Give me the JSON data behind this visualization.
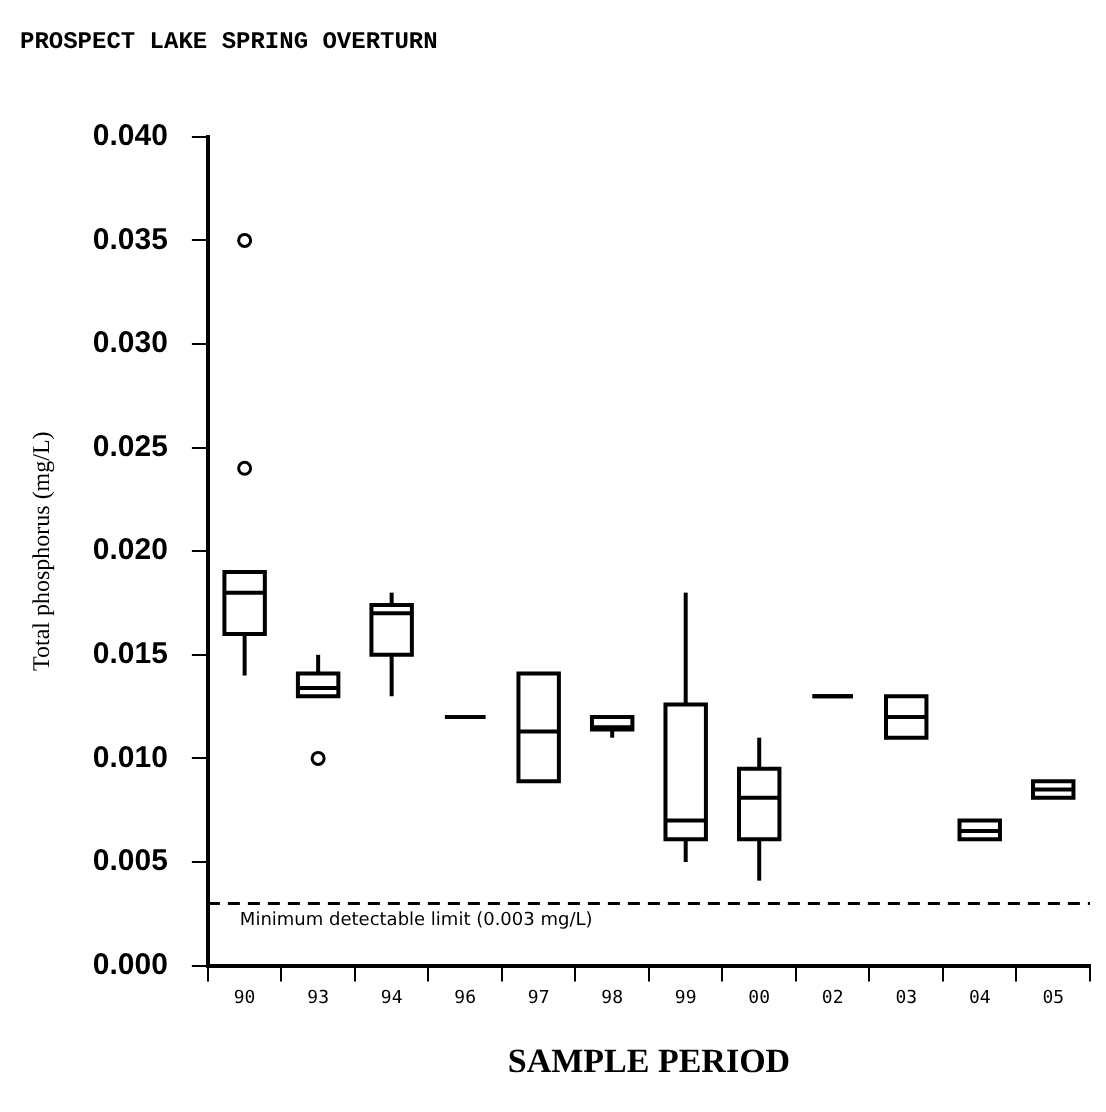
{
  "chart_data": {
    "type": "box",
    "title": "PROSPECT LAKE SPRING OVERTURN",
    "xlabel": "SAMPLE PERIOD",
    "ylabel": "Total phosphorus (mg/L)",
    "categories": [
      "90",
      "93",
      "94",
      "96",
      "97",
      "98",
      "99",
      "00",
      "02",
      "03",
      "04",
      "05"
    ],
    "boxes": [
      {
        "low": 0.014,
        "q1": 0.016,
        "median": 0.018,
        "q3": 0.019,
        "high": 0.019,
        "outliers": [
          0.035,
          0.024
        ]
      },
      {
        "low": 0.013,
        "q1": 0.013,
        "median": 0.0134,
        "q3": 0.0141,
        "high": 0.015,
        "outliers": [
          0.01
        ]
      },
      {
        "low": 0.013,
        "q1": 0.015,
        "median": 0.017,
        "q3": 0.0174,
        "high": 0.018
      },
      {
        "low": 0.012,
        "q1": 0.012,
        "median": 0.012,
        "q3": 0.012,
        "high": 0.012
      },
      {
        "low": 0.0089,
        "q1": 0.0089,
        "median": 0.0113,
        "q3": 0.0141,
        "high": 0.0141
      },
      {
        "low": 0.011,
        "q1": 0.0114,
        "median": 0.0115,
        "q3": 0.012,
        "high": 0.012
      },
      {
        "low": 0.005,
        "q1": 0.0061,
        "median": 0.007,
        "q3": 0.0126,
        "high": 0.018
      },
      {
        "low": 0.0041,
        "q1": 0.0061,
        "median": 0.0081,
        "q3": 0.0095,
        "high": 0.011
      },
      {
        "low": 0.013,
        "q1": 0.013,
        "median": 0.013,
        "q3": 0.013,
        "high": 0.013
      },
      {
        "low": 0.011,
        "q1": 0.011,
        "median": 0.012,
        "q3": 0.013,
        "high": 0.013
      },
      {
        "low": 0.0061,
        "q1": 0.0061,
        "median": 0.0065,
        "q3": 0.007,
        "high": 0.007
      },
      {
        "low": 0.0081,
        "q1": 0.0081,
        "median": 0.0085,
        "q3": 0.0089,
        "high": 0.0089
      }
    ],
    "color": "#000000",
    "ylim": [
      0,
      0.04
    ],
    "yticks": [
      {
        "value": 0,
        "label": "0.000"
      },
      {
        "value": 0.005,
        "label": "0.005"
      },
      {
        "value": 0.01,
        "label": "0.010"
      },
      {
        "value": 0.015,
        "label": "0.015"
      },
      {
        "value": 0.02,
        "label": "0.020"
      },
      {
        "value": 0.025,
        "label": "0.025"
      },
      {
        "value": 0.03,
        "label": "0.030"
      },
      {
        "value": 0.035,
        "label": "0.035"
      },
      {
        "value": 0.04,
        "label": "0.040"
      }
    ],
    "ref_lines": [
      {
        "axis": "y",
        "value": 0.003,
        "label": "Minimum detectable limit (0.003 mg/L)",
        "line_style": "dashed",
        "color": "#000000"
      }
    ],
    "grid": false,
    "legend": false
  }
}
